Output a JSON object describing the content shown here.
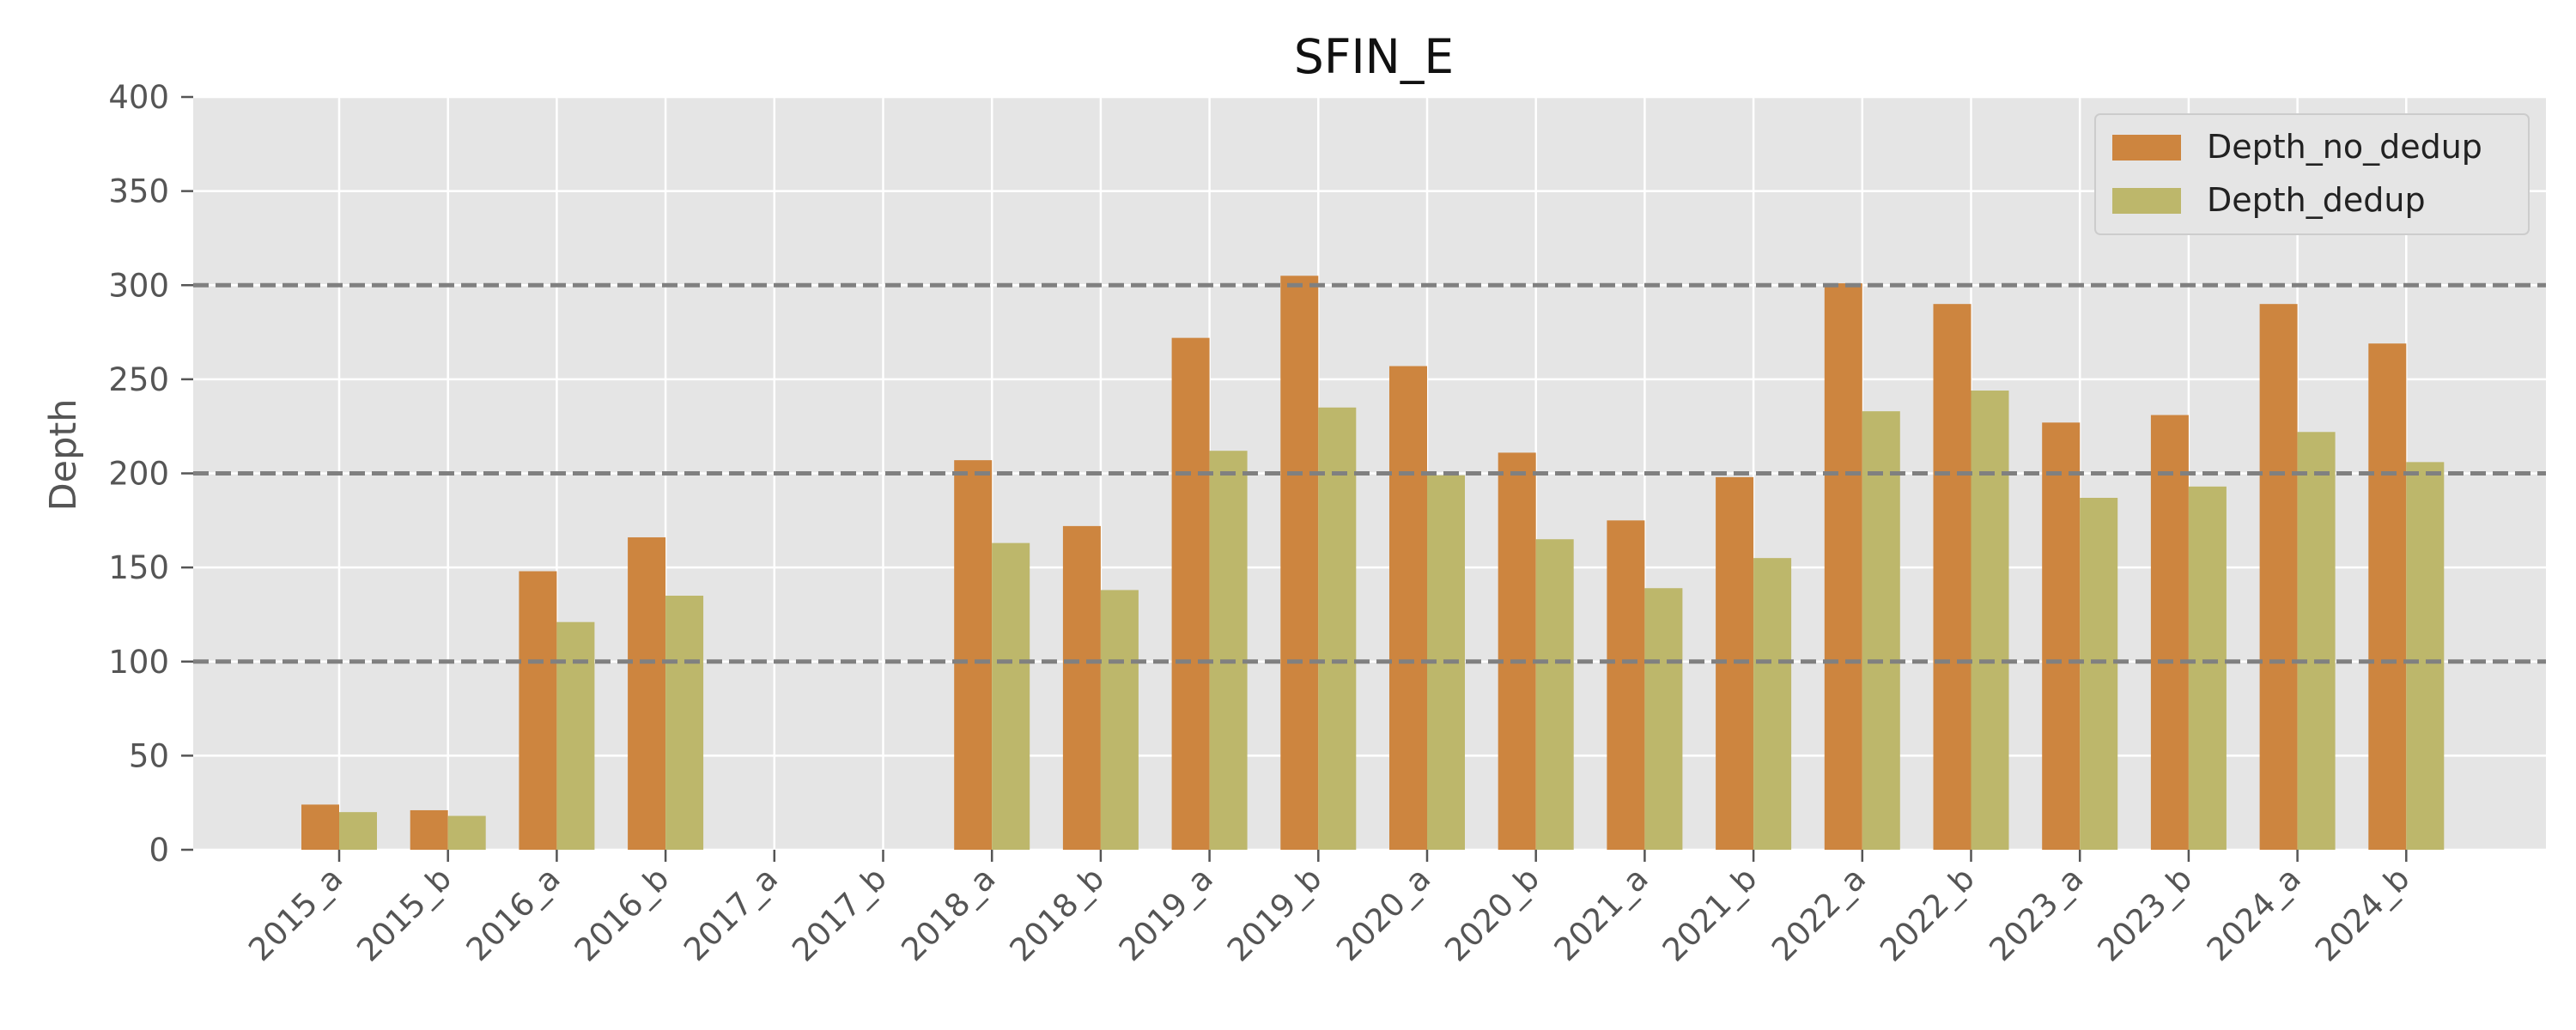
{
  "chart_data": {
    "type": "bar",
    "title": "SFIN_E",
    "xlabel": "",
    "ylabel": "Depth",
    "ylim": [
      0,
      400
    ],
    "yticks": [
      0,
      50,
      100,
      150,
      200,
      250,
      300,
      350,
      400
    ],
    "grid": true,
    "legend_position": "top-right",
    "reference_lines": [
      100,
      200,
      300
    ],
    "categories": [
      "2015_a",
      "2015_b",
      "2016_a",
      "2016_b",
      "2017_a",
      "2017_b",
      "2018_a",
      "2018_b",
      "2019_a",
      "2019_b",
      "2020_a",
      "2020_b",
      "2021_a",
      "2021_b",
      "2022_a",
      "2022_b",
      "2023_a",
      "2023_b",
      "2024_a",
      "2024_b"
    ],
    "series": [
      {
        "name": "Depth_no_dedup",
        "color": "#CD853F",
        "values": [
          24,
          21,
          148,
          166,
          0,
          0,
          207,
          172,
          272,
          305,
          257,
          211,
          175,
          198,
          301,
          290,
          227,
          231,
          290,
          269
        ]
      },
      {
        "name": "Depth_dedup",
        "color": "#BDB76B",
        "values": [
          20,
          18,
          121,
          135,
          0,
          0,
          163,
          138,
          212,
          235,
          199,
          165,
          139,
          155,
          233,
          244,
          187,
          193,
          222,
          206
        ]
      }
    ]
  },
  "colors": {
    "plot_background": "#E5E5E5",
    "grid": "#FFFFFF",
    "reference_line": "#808080"
  }
}
